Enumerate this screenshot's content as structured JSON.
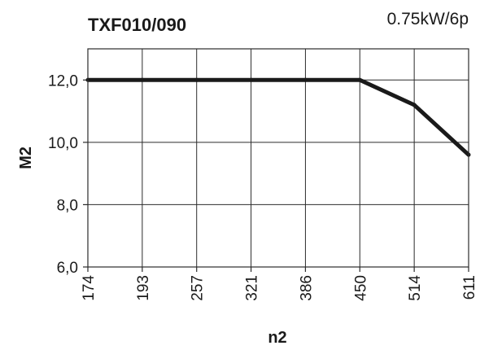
{
  "chart_data": {
    "type": "line",
    "title": "TXF010/090",
    "subtitle": "0.75kW/6p",
    "xlabel": "n2",
    "ylabel": "M2",
    "x_scale": "categorical",
    "categories": [
      "174",
      "193",
      "257",
      "321",
      "386",
      "450",
      "514",
      "611"
    ],
    "ylim": [
      6.0,
      13.0
    ],
    "y_ticks": [
      6.0,
      8.0,
      10.0,
      12.0
    ],
    "y_tick_labels": [
      "6,0",
      "8,0",
      "10,0",
      "12,0"
    ],
    "grid": true,
    "series": [
      {
        "values": [
          12.0,
          12.0,
          12.0,
          12.0,
          12.0,
          12.0,
          11.2,
          9.6
        ]
      }
    ]
  },
  "colors": {
    "line": "#1a1a1a",
    "grid": "#2b2b2b",
    "background": "#ffffff"
  }
}
